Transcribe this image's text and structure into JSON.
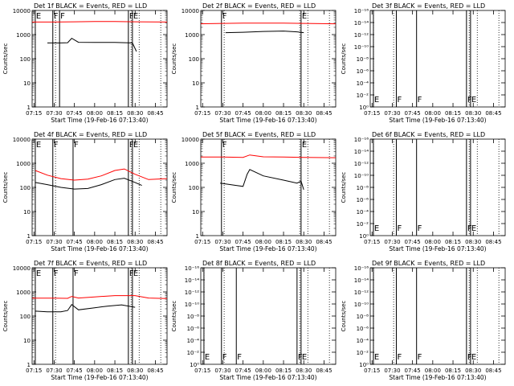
{
  "figure": {
    "xlabel": "Start Time (19-Feb-16 07:13:40)",
    "ylabel": "Counts/sec",
    "xticks": [
      "07:15",
      "07:30",
      "07:45",
      "08:00",
      "08:15",
      "08:30",
      "08:45"
    ]
  },
  "chart_data": [
    {
      "type": "line",
      "title": "Det 1f BLACK = Events, RED = LLD",
      "ylabel": "Counts/sec",
      "yscale": "log",
      "xlim": [
        "07:13:40",
        "08:53:40"
      ],
      "ylim": [
        1,
        10000
      ],
      "yticks": [
        "1",
        "10",
        "100",
        "1000",
        "10000"
      ],
      "xticks": [
        "07:15",
        "07:30",
        "07:45",
        "08:00",
        "08:15",
        "08:30",
        "08:45"
      ],
      "markers": [
        {
          "time": "07:16",
          "label": "E"
        },
        {
          "time": "07:29",
          "label": "F"
        },
        {
          "time": "07:34",
          "label": "F"
        },
        {
          "time": "08:25",
          "label": "F"
        },
        {
          "time": "08:28",
          "label": "E"
        }
      ],
      "dotted_lines": [
        "07:16",
        "07:31",
        "08:27",
        "08:33",
        "08:49"
      ],
      "series": [
        {
          "name": "BLACK = Events",
          "color": "#000000",
          "x": [
            "07:25",
            "07:35",
            "07:40",
            "07:43",
            "07:48",
            "08:00",
            "08:15",
            "08:28",
            "08:31"
          ],
          "y": [
            450,
            450,
            460,
            700,
            480,
            470,
            470,
            450,
            200
          ]
        },
        {
          "name": "RED = LLD",
          "color": "#ff0000",
          "x": [
            "07:13:40",
            "07:30",
            "07:45",
            "08:00",
            "08:15",
            "08:30",
            "08:53:40"
          ],
          "y": [
            3300,
            3300,
            3400,
            3500,
            3500,
            3400,
            3300
          ]
        }
      ]
    },
    {
      "type": "line",
      "title": "Det 2f BLACK = Events, RED = LLD",
      "ylabel": "Counts/sec",
      "yscale": "log",
      "xlim": [
        "07:13:40",
        "08:53:40"
      ],
      "ylim": [
        1,
        10000
      ],
      "yticks": [
        "1",
        "10",
        "100",
        "1000",
        "10000"
      ],
      "xticks": [
        "07:15",
        "07:30",
        "07:45",
        "08:00",
        "08:15",
        "08:30",
        "08:45"
      ],
      "markers": [
        {
          "time": "07:29",
          "label": "F"
        },
        {
          "time": "08:28",
          "label": "E"
        }
      ],
      "dotted_lines": [
        "07:31",
        "08:27",
        "08:33",
        "08:49"
      ],
      "series": [
        {
          "name": "BLACK = Events",
          "color": "#000000",
          "x": [
            "07:32",
            "07:45",
            "08:00",
            "08:15",
            "08:25",
            "08:30"
          ],
          "y": [
            1200,
            1250,
            1350,
            1400,
            1300,
            1200
          ]
        },
        {
          "name": "RED = LLD",
          "color": "#ff0000",
          "x": [
            "07:13:40",
            "07:30",
            "07:45",
            "08:00",
            "08:15",
            "08:30",
            "08:53:40"
          ],
          "y": [
            2800,
            2900,
            3000,
            3000,
            3000,
            2900,
            2800
          ]
        }
      ]
    },
    {
      "type": "line",
      "title": "Det 3f BLACK = Events, RED = LLD",
      "ylabel": "Counts/sec",
      "yscale": "log",
      "xlim": [
        "07:13:40",
        "08:53:40"
      ],
      "ylim": [
        1,
        1000000000
      ],
      "yticks": [
        "10⁰",
        "10⁻²",
        "10⁻⁴",
        "10⁻⁶",
        "10⁻⁸",
        "10⁻¹⁰",
        "10⁻¹²",
        "10⁻¹⁴",
        "10⁻¹⁶"
      ],
      "xticks": [
        "07:15",
        "07:30",
        "07:45",
        "08:00",
        "08:15",
        "08:30",
        "08:45"
      ],
      "markers": [
        {
          "time": "07:16",
          "label": "E"
        },
        {
          "time": "07:33",
          "label": "F"
        },
        {
          "time": "07:48",
          "label": "F"
        },
        {
          "time": "08:25",
          "label": "F"
        },
        {
          "time": "08:28",
          "label": "E"
        }
      ],
      "dotted_lines": [
        "07:16",
        "07:31",
        "08:27",
        "08:33",
        "08:49"
      ],
      "series": []
    },
    {
      "type": "line",
      "title": "Det 4f BLACK = Events, RED = LLD",
      "ylabel": "Counts/sec",
      "yscale": "log",
      "xlim": [
        "07:13:40",
        "08:53:40"
      ],
      "ylim": [
        1,
        10000
      ],
      "yticks": [
        "1",
        "10",
        "100",
        "1000",
        "10000"
      ],
      "xticks": [
        "07:15",
        "07:30",
        "07:45",
        "08:00",
        "08:15",
        "08:30",
        "08:45"
      ],
      "markers": [
        {
          "time": "07:16",
          "label": "E"
        },
        {
          "time": "07:29",
          "label": "F"
        },
        {
          "time": "07:44",
          "label": "F"
        },
        {
          "time": "08:25",
          "label": "F"
        },
        {
          "time": "08:28",
          "label": "E"
        }
      ],
      "dotted_lines": [
        "07:16",
        "07:31",
        "08:27",
        "08:33",
        "08:49"
      ],
      "series": [
        {
          "name": "BLACK = Events",
          "color": "#000000",
          "x": [
            "07:16",
            "07:25",
            "07:35",
            "07:45",
            "07:55",
            "08:05",
            "08:15",
            "08:22",
            "08:30",
            "08:35"
          ],
          "y": [
            160,
            130,
            100,
            85,
            90,
            130,
            210,
            240,
            160,
            120
          ]
        },
        {
          "name": "RED = LLD",
          "color": "#ff0000",
          "x": [
            "07:16",
            "07:25",
            "07:35",
            "07:45",
            "07:55",
            "08:05",
            "08:15",
            "08:22",
            "08:30",
            "08:40",
            "08:53:40"
          ],
          "y": [
            500,
            320,
            230,
            200,
            220,
            300,
            500,
            580,
            350,
            210,
            230
          ]
        }
      ]
    },
    {
      "type": "line",
      "title": "Det 5f BLACK = Events, RED = LLD",
      "ylabel": "Counts/sec",
      "yscale": "log",
      "xlim": [
        "07:13:40",
        "08:53:40"
      ],
      "ylim": [
        1,
        10000
      ],
      "yticks": [
        "1",
        "10",
        "100",
        "1000",
        "10000"
      ],
      "xticks": [
        "07:15",
        "07:30",
        "07:45",
        "08:00",
        "08:15",
        "08:30",
        "08:45"
      ],
      "markers": [
        {
          "time": "07:29",
          "label": "F"
        },
        {
          "time": "08:28",
          "label": "E"
        }
      ],
      "dotted_lines": [
        "07:31",
        "08:27",
        "08:33",
        "08:49"
      ],
      "series": [
        {
          "name": "BLACK = Events",
          "color": "#000000",
          "x": [
            "07:28",
            "07:40",
            "07:45",
            "07:48",
            "07:50",
            "08:00",
            "08:15",
            "08:25",
            "08:28",
            "08:30"
          ],
          "y": [
            150,
            120,
            110,
            350,
            550,
            300,
            200,
            150,
            180,
            80
          ]
        },
        {
          "name": "RED = LLD",
          "color": "#ff0000",
          "x": [
            "07:13:40",
            "07:30",
            "07:45",
            "07:50",
            "08:00",
            "08:15",
            "08:30",
            "08:53:40"
          ],
          "y": [
            1800,
            1800,
            1750,
            2200,
            1850,
            1800,
            1750,
            1700
          ]
        }
      ]
    },
    {
      "type": "line",
      "title": "Det 6f BLACK = Events, RED = LLD",
      "ylabel": "Counts/sec",
      "yscale": "log",
      "xlim": [
        "07:13:40",
        "08:53:40"
      ],
      "ylim": [
        1,
        1000000000
      ],
      "yticks": [
        "10⁰",
        "10⁻²",
        "10⁻⁴",
        "10⁻⁶",
        "10⁻⁸",
        "10⁻¹⁰",
        "10⁻¹²",
        "10⁻¹⁴",
        "10⁻¹⁶"
      ],
      "xticks": [
        "07:15",
        "07:30",
        "07:45",
        "08:00",
        "08:15",
        "08:30",
        "08:45"
      ],
      "markers": [
        {
          "time": "07:16",
          "label": "E"
        },
        {
          "time": "07:33",
          "label": "F"
        },
        {
          "time": "07:48",
          "label": "F"
        },
        {
          "time": "08:25",
          "label": "F"
        },
        {
          "time": "08:28",
          "label": "E"
        }
      ],
      "dotted_lines": [
        "07:16",
        "07:31",
        "08:27",
        "08:33",
        "08:49"
      ],
      "series": []
    },
    {
      "type": "line",
      "title": "Det 7f BLACK = Events, RED = LLD",
      "ylabel": "Counts/sec",
      "yscale": "log",
      "xlim": [
        "07:13:40",
        "08:53:40"
      ],
      "ylim": [
        1,
        10000
      ],
      "yticks": [
        "1",
        "10",
        "100",
        "1000",
        "10000"
      ],
      "xticks": [
        "07:15",
        "07:30",
        "07:45",
        "08:00",
        "08:15",
        "08:30",
        "08:45"
      ],
      "markers": [
        {
          "time": "07:16",
          "label": "E"
        },
        {
          "time": "07:29",
          "label": "F"
        },
        {
          "time": "07:44",
          "label": "F"
        },
        {
          "time": "08:25",
          "label": "F"
        },
        {
          "time": "08:28",
          "label": "E"
        }
      ],
      "dotted_lines": [
        "07:16",
        "07:31",
        "08:27",
        "08:33",
        "08:49"
      ],
      "series": [
        {
          "name": "BLACK = Events",
          "color": "#000000",
          "x": [
            "07:16",
            "07:25",
            "07:35",
            "07:40",
            "07:43",
            "07:48",
            "08:00",
            "08:10",
            "08:20",
            "08:30"
          ],
          "y": [
            160,
            150,
            150,
            170,
            300,
            180,
            220,
            260,
            290,
            230
          ]
        },
        {
          "name": "RED = LLD",
          "color": "#ff0000",
          "x": [
            "07:13:40",
            "07:30",
            "07:40",
            "07:43",
            "07:48",
            "08:00",
            "08:15",
            "08:30",
            "08:40",
            "08:53:40"
          ],
          "y": [
            550,
            550,
            540,
            650,
            560,
            620,
            700,
            700,
            560,
            530
          ]
        }
      ]
    },
    {
      "type": "line",
      "title": "Det 8f BLACK = Events, RED = LLD",
      "ylabel": "Counts/sec",
      "yscale": "log",
      "xlim": [
        "07:13:40",
        "08:53:40"
      ],
      "ylim": [
        1,
        1000000000
      ],
      "yticks": [
        "10⁰",
        "10⁻²",
        "10⁻⁴",
        "10⁻⁶",
        "10⁻⁸",
        "10⁻¹⁰",
        "10⁻¹²",
        "10⁻¹⁴",
        "10⁻¹⁶"
      ],
      "xticks": [
        "07:15",
        "07:30",
        "07:45",
        "08:00",
        "08:15",
        "08:30",
        "08:45"
      ],
      "markers": [
        {
          "time": "07:16",
          "label": "E"
        },
        {
          "time": "07:29",
          "label": "F"
        },
        {
          "time": "07:40",
          "label": "F"
        },
        {
          "time": "08:25",
          "label": "F"
        },
        {
          "time": "08:28",
          "label": "E"
        }
      ],
      "dotted_lines": [
        "07:16",
        "07:31",
        "08:27",
        "08:33",
        "08:49"
      ],
      "series": []
    },
    {
      "type": "line",
      "title": "Det 9f BLACK = Events, RED = LLD",
      "ylabel": "Counts/sec",
      "yscale": "log",
      "xlim": [
        "07:13:40",
        "08:53:40"
      ],
      "ylim": [
        1,
        1000000000
      ],
      "yticks": [
        "10⁰",
        "10⁻²",
        "10⁻⁴",
        "10⁻⁶",
        "10⁻⁸",
        "10⁻¹⁰",
        "10⁻¹²",
        "10⁻¹⁴",
        "10⁻¹⁶"
      ],
      "xticks": [
        "07:15",
        "07:30",
        "07:45",
        "08:00",
        "08:15",
        "08:30",
        "08:45"
      ],
      "markers": [
        {
          "time": "07:16",
          "label": "E"
        },
        {
          "time": "07:33",
          "label": "F"
        },
        {
          "time": "07:48",
          "label": "F"
        },
        {
          "time": "08:25",
          "label": "F"
        },
        {
          "time": "08:28",
          "label": "E"
        }
      ],
      "dotted_lines": [
        "07:16",
        "07:31",
        "08:27",
        "08:33",
        "08:49"
      ],
      "series": []
    }
  ]
}
